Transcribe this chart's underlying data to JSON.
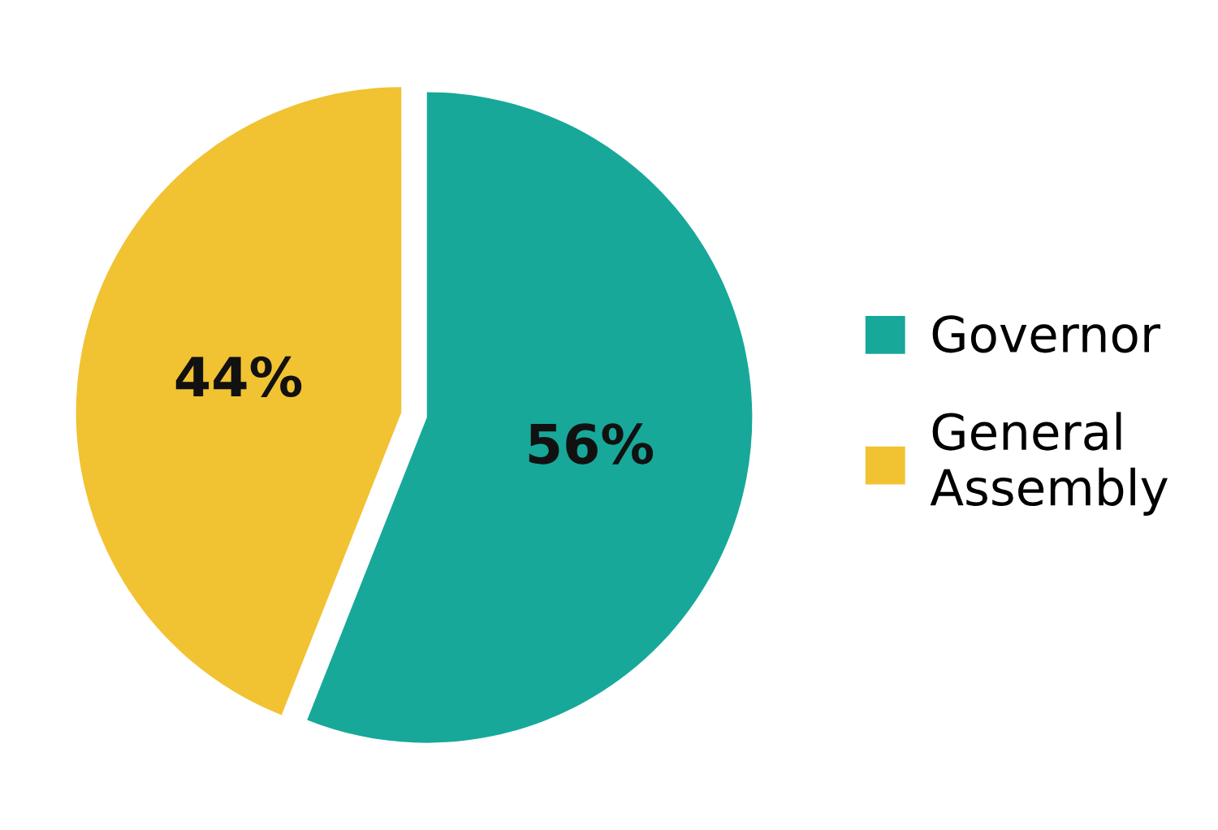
{
  "chart_data": {
    "type": "pie",
    "categories": [
      "Governor",
      "General\nAssembly"
    ],
    "values": [
      56,
      44
    ],
    "colors": [
      "#17a89a",
      "#f1c232"
    ],
    "value_labels": [
      "56%",
      "44%"
    ],
    "legend": "right"
  }
}
